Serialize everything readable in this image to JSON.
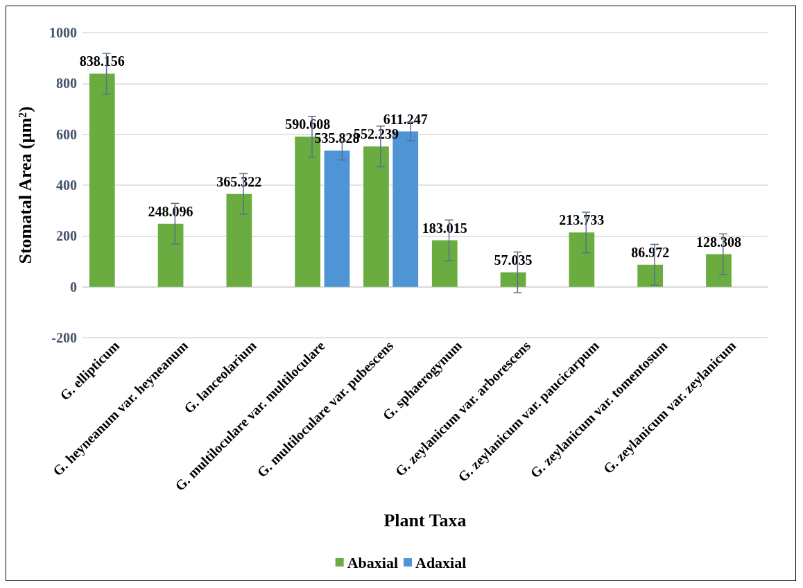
{
  "chart_data": {
    "type": "bar",
    "xlabel": "Plant Taxa",
    "ylabel": "Stomatal Area (μm²)",
    "categories": [
      "G. ellipticum",
      "G. heyneanum var. heyneanum",
      "G. lanceolarium",
      "G. multiloculare var. multiloculare",
      "G. multiloculare var. pubescens",
      "G. sphaerogynum",
      "G. zeylanicum var. arborescens",
      "G. zeylanicum var. paucicarpum",
      "G. zeylanicum var. tomentosum",
      "G. zeylanicum var. zeylanicum"
    ],
    "series": [
      {
        "name": "Abaxial",
        "color": "#6aac40",
        "values": [
          838.156,
          248.096,
          365.322,
          590.608,
          552.239,
          183.015,
          57.035,
          213.733,
          86.972,
          128.308
        ],
        "errors": [
          80,
          80,
          80,
          80,
          80,
          80,
          80,
          80,
          80,
          80
        ]
      },
      {
        "name": "Adaxial",
        "color": "#4f94d4",
        "values": [
          null,
          null,
          null,
          535.828,
          611.247,
          null,
          null,
          null,
          null,
          null
        ],
        "errors": [
          null,
          null,
          null,
          37,
          37,
          null,
          null,
          null,
          null,
          null
        ]
      }
    ],
    "ylim": [
      -200,
      1000
    ],
    "yticks": [
      -200,
      0,
      200,
      400,
      600,
      800,
      1000
    ],
    "grid": "y",
    "legend": "bottom",
    "data_labels": true
  }
}
